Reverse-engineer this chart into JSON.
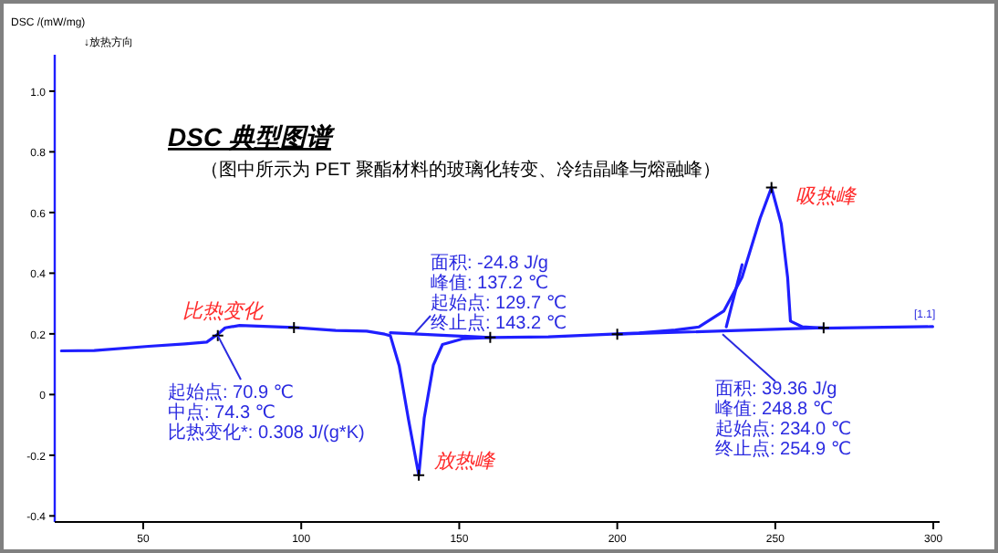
{
  "chart_data": {
    "type": "line",
    "title": "DSC 典型图谱",
    "subtitle": "（图中所示为 PET 聚酯材料的玻璃化转变、冷结晶峰与熔融峰）",
    "ylabel": "DSC /(mW/mg)",
    "xlim": [
      22,
      302
    ],
    "ylim": [
      -0.42,
      1.12
    ],
    "xticks": [
      50,
      100,
      150,
      200,
      250,
      300
    ],
    "yticks": [
      -0.4,
      -0.2,
      {
        "value": 0,
        "label": "0"
      },
      0.2,
      0.4,
      0.6,
      0.8,
      {
        "value": 1.0,
        "label": "1.0"
      }
    ],
    "annotations": [
      "↓放热方向",
      "比热变化",
      "放热峰",
      "吸热峰",
      "[1.1]",
      {
        "text": "起始点: 70.9 ℃\n中点: 74.3 ℃\n比热变化*: 0.308 J/(g*K)",
        "x": 73.6,
        "y": 0.194
      },
      {
        "text": "面积: -24.8 J/g\n峰值: 137.2 ℃\n起始点: 129.7 ℃\n终止点: 143.2 ℃",
        "x": 136,
        "y": 0.203
      },
      {
        "text": "面积: 39.36 J/g\n峰值: 248.8 ℃\n起始点: 234.0 ℃\n终止点: 254.9 ℃",
        "x": 233.3,
        "y": 0.199
      }
    ],
    "series": [
      {
        "color": "#1f1fff",
        "x": [
          24.1,
          34.5,
          51.7,
          63.2,
          70.1,
          73.6,
          75.9,
          80.5,
          97.7,
          110.9,
          120.7,
          126.4,
          128.2,
          131.0,
          133.9,
          137.2,
          138.9,
          141.8,
          144.7,
          151.1,
          159.8,
          178.2,
          206.9,
          218.4,
          225.9,
          233.7,
          239.5,
          245.2,
          248.8,
          251.9,
          253.9,
          254.8,
          258.6,
          265.3,
          299.8
        ],
        "values": [
          0.144,
          0.145,
          0.159,
          0.167,
          0.173,
          0.199,
          0.22,
          0.228,
          0.221,
          0.211,
          0.209,
          0.199,
          0.194,
          0.095,
          -0.08,
          -0.266,
          -0.078,
          0.097,
          0.165,
          0.184,
          0.188,
          0.19,
          0.203,
          0.213,
          0.223,
          0.275,
          0.387,
          0.581,
          0.682,
          0.562,
          0.387,
          0.242,
          0.223,
          0.219,
          0.224
        ]
      },
      {
        "color": "#1f1fff",
        "x": [
          128.2,
          159.8
        ],
        "values": [
          0.204,
          0.188
        ]
      },
      {
        "color": "#1f1fff",
        "x": [
          200,
          265.3
        ],
        "values": [
          0.199,
          0.22
        ]
      },
      {
        "color": "#1f1fff",
        "x": [
          234.5,
          239.5
        ],
        "values": [
          0.223,
          0.428
        ]
      },
      {
        "type": "scatter",
        "color": "#000000",
        "marker": "cross",
        "x": [
          73.6,
          97.7,
          159.8,
          200,
          265.3,
          137.2,
          248.8
        ],
        "values": [
          0.194,
          0.221,
          0.188,
          0.199,
          0.22,
          -0.266,
          0.682
        ]
      }
    ]
  }
}
